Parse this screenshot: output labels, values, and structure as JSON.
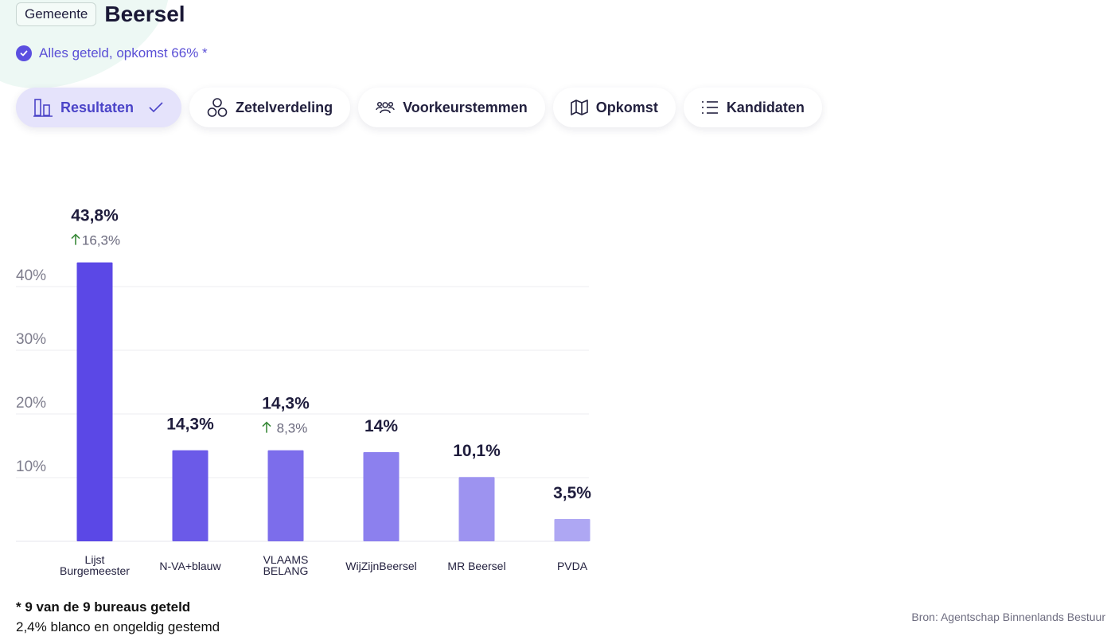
{
  "header": {
    "badge": "Gemeente",
    "title": "Beersel"
  },
  "status": {
    "text": "Alles geteld, opkomst 66% *"
  },
  "tabs": [
    {
      "label": "Resultaten",
      "icon": "bar-chart-icon",
      "active": true
    },
    {
      "label": "Zetelverdeling",
      "icon": "seats-icon",
      "active": false
    },
    {
      "label": "Voorkeurstemmen",
      "icon": "people-icon",
      "active": false
    },
    {
      "label": "Opkomst",
      "icon": "map-icon",
      "active": false
    },
    {
      "label": "Kandidaten",
      "icon": "list-icon",
      "active": false
    }
  ],
  "chart_data": {
    "type": "bar",
    "title": "",
    "xlabel": "",
    "ylabel": "",
    "ylim": [
      0,
      40
    ],
    "yticks": [
      "10%",
      "20%",
      "30%",
      "40%"
    ],
    "ytick_values": [
      10,
      20,
      30,
      40
    ],
    "categories": [
      "Lijst Burgemeester",
      "N-VA+blauw",
      "VLAAMS BELANG",
      "WijZijnBeersel",
      "MR Beersel",
      "PVDA"
    ],
    "category_lines": [
      [
        "Lijst",
        "Burgemeester"
      ],
      [
        "N-VA+blauw"
      ],
      [
        "VLAAMS",
        "BELANG"
      ],
      [
        "WijZijnBeersel"
      ],
      [
        "MR Beersel"
      ],
      [
        "PVDA"
      ]
    ],
    "values": [
      43.8,
      14.3,
      14.3,
      14.0,
      10.1,
      3.5
    ],
    "value_labels": [
      "43,8%",
      "14,3%",
      "14,3%",
      "14%",
      "10,1%",
      "3,5%"
    ],
    "change_labels": [
      "16,3%",
      null,
      "8,3%",
      null,
      null,
      null
    ],
    "colors": [
      "#5b48e6",
      "#6b5ae8",
      "#7c6deb",
      "#8c80ee",
      "#9d93f0",
      "#aea7f3"
    ],
    "grid": true
  },
  "footer": {
    "note": "* 9 van de 9 bureaus geteld",
    "blanco": "2,4% blanco en ongeldig gestemd",
    "source": "Bron: Agentschap Binnenlands Bestuur"
  }
}
